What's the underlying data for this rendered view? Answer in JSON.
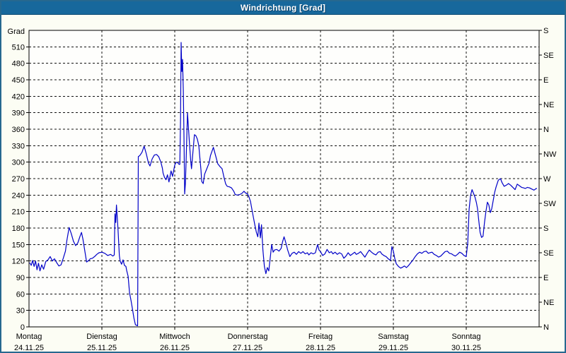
{
  "window": {
    "title": "Windrichtung [Grad]",
    "titlebar_color": "#17689c",
    "border_color": "#26688f",
    "background_color": "#fcfdf4"
  },
  "chart_data": {
    "type": "line",
    "title": "Windrichtung [Grad]",
    "grid": true,
    "line_color": "#0000c8",
    "plot_background": "#fefefc",
    "y_left": {
      "unit_label": "Grad",
      "min": 0,
      "max": 540,
      "tick_step": 30,
      "ticks": [
        0,
        30,
        60,
        90,
        120,
        150,
        180,
        210,
        240,
        270,
        300,
        330,
        360,
        390,
        420,
        450,
        480,
        510
      ]
    },
    "y_right": {
      "description": "compass directions every 45 degrees",
      "ticks": [
        {
          "value": 540,
          "label": "S"
        },
        {
          "value": 495,
          "label": "SE"
        },
        {
          "value": 450,
          "label": "E"
        },
        {
          "value": 405,
          "label": "NE"
        },
        {
          "value": 360,
          "label": "N"
        },
        {
          "value": 315,
          "label": "NW"
        },
        {
          "value": 270,
          "label": "W"
        },
        {
          "value": 225,
          "label": "SW"
        },
        {
          "value": 180,
          "label": "S"
        },
        {
          "value": 135,
          "label": "SE"
        },
        {
          "value": 90,
          "label": "E"
        },
        {
          "value": 45,
          "label": "NE"
        },
        {
          "value": 0,
          "label": "N"
        }
      ]
    },
    "x_axis": {
      "span_days": 7,
      "days": [
        {
          "name": "Montag",
          "date": "24.11.25"
        },
        {
          "name": "Dienstag",
          "date": "25.11.25"
        },
        {
          "name": "Mittwoch",
          "date": "26.11.25"
        },
        {
          "name": "Donnerstag",
          "date": "27.11.25"
        },
        {
          "name": "Freitag",
          "date": "28.11.25"
        },
        {
          "name": "Samstag",
          "date": "29.11.25"
        },
        {
          "name": "Sonntag",
          "date": "30.11.25"
        }
      ]
    },
    "series": [
      {
        "name": "Windrichtung",
        "color": "#0000c8",
        "points": [
          [
            0.01,
            117
          ],
          [
            0.03,
            112
          ],
          [
            0.05,
            121
          ],
          [
            0.07,
            110
          ],
          [
            0.09,
            120
          ],
          [
            0.11,
            104
          ],
          [
            0.13,
            116
          ],
          [
            0.15,
            102
          ],
          [
            0.175,
            113
          ],
          [
            0.2,
            105
          ],
          [
            0.23,
            119
          ],
          [
            0.26,
            122
          ],
          [
            0.29,
            128
          ],
          [
            0.32,
            120
          ],
          [
            0.35,
            124
          ],
          [
            0.38,
            117
          ],
          [
            0.41,
            111
          ],
          [
            0.44,
            113
          ],
          [
            0.47,
            125
          ],
          [
            0.5,
            138
          ],
          [
            0.52,
            158
          ],
          [
            0.55,
            181
          ],
          [
            0.58,
            170
          ],
          [
            0.61,
            156
          ],
          [
            0.64,
            148
          ],
          [
            0.67,
            153
          ],
          [
            0.7,
            165
          ],
          [
            0.72,
            172
          ],
          [
            0.74,
            160
          ],
          [
            0.77,
            135
          ],
          [
            0.79,
            118
          ],
          [
            0.82,
            121
          ],
          [
            0.84,
            124
          ],
          [
            0.87,
            125
          ],
          [
            0.9,
            128
          ],
          [
            0.93,
            132
          ],
          [
            0.96,
            135
          ],
          [
            1.0,
            136
          ],
          [
            1.04,
            134
          ],
          [
            1.08,
            130
          ],
          [
            1.12,
            132
          ],
          [
            1.15,
            129
          ],
          [
            1.17,
            131
          ],
          [
            1.18,
            206
          ],
          [
            1.19,
            190
          ],
          [
            1.2,
            222
          ],
          [
            1.22,
            180
          ],
          [
            1.24,
            130
          ],
          [
            1.25,
            120
          ],
          [
            1.27,
            114
          ],
          [
            1.29,
            122
          ],
          [
            1.31,
            112
          ],
          [
            1.33,
            110
          ],
          [
            1.34,
            103
          ],
          [
            1.36,
            92
          ],
          [
            1.38,
            62
          ],
          [
            1.4,
            48
          ],
          [
            1.42,
            32
          ],
          [
            1.44,
            16
          ],
          [
            1.46,
            4
          ],
          [
            1.49,
            2
          ],
          [
            1.5,
            310
          ],
          [
            1.52,
            312
          ],
          [
            1.55,
            318
          ],
          [
            1.58,
            329
          ],
          [
            1.61,
            315
          ],
          [
            1.64,
            298
          ],
          [
            1.66,
            293
          ],
          [
            1.69,
            306
          ],
          [
            1.72,
            313
          ],
          [
            1.75,
            314
          ],
          [
            1.78,
            310
          ],
          [
            1.81,
            300
          ],
          [
            1.83,
            289
          ],
          [
            1.84,
            280
          ],
          [
            1.86,
            272
          ],
          [
            1.88,
            268
          ],
          [
            1.9,
            277
          ],
          [
            1.92,
            264
          ],
          [
            1.95,
            284
          ],
          [
            1.97,
            274
          ],
          [
            2.0,
            295
          ],
          [
            2.02,
            300
          ],
          [
            2.04,
            299
          ],
          [
            2.06,
            296
          ],
          [
            2.07,
            296
          ],
          [
            2.08,
            380
          ],
          [
            2.087,
            518
          ],
          [
            2.097,
            465
          ],
          [
            2.107,
            487
          ],
          [
            2.117,
            430
          ],
          [
            2.126,
            350
          ],
          [
            2.136,
            242
          ],
          [
            2.146,
            260
          ],
          [
            2.155,
            300
          ],
          [
            2.175,
            390
          ],
          [
            2.184,
            370
          ],
          [
            2.2,
            338
          ],
          [
            2.22,
            300
          ],
          [
            2.23,
            288
          ],
          [
            2.25,
            320
          ],
          [
            2.27,
            350
          ],
          [
            2.29,
            348
          ],
          [
            2.31,
            342
          ],
          [
            2.33,
            330
          ],
          [
            2.34,
            315
          ],
          [
            2.36,
            285
          ],
          [
            2.37,
            265
          ],
          [
            2.39,
            261
          ],
          [
            2.41,
            278
          ],
          [
            2.44,
            288
          ],
          [
            2.47,
            298
          ],
          [
            2.49,
            312
          ],
          [
            2.53,
            327
          ],
          [
            2.56,
            312
          ],
          [
            2.59,
            297
          ],
          [
            2.62,
            292
          ],
          [
            2.65,
            288
          ],
          [
            2.68,
            270
          ],
          [
            2.7,
            260
          ],
          [
            2.72,
            256
          ],
          [
            2.75,
            255
          ],
          [
            2.78,
            253
          ],
          [
            2.81,
            247
          ],
          [
            2.83,
            241
          ],
          [
            2.86,
            240
          ],
          [
            2.89,
            241
          ],
          [
            2.92,
            243
          ],
          [
            2.95,
            247
          ],
          [
            2.97,
            244
          ],
          [
            3.0,
            242
          ],
          [
            3.02,
            236
          ],
          [
            3.04,
            228
          ],
          [
            3.07,
            206
          ],
          [
            3.1,
            185
          ],
          [
            3.12,
            172
          ],
          [
            3.14,
            164
          ],
          [
            3.155,
            189
          ],
          [
            3.175,
            162
          ],
          [
            3.19,
            186
          ],
          [
            3.21,
            140
          ],
          [
            3.23,
            110
          ],
          [
            3.25,
            97
          ],
          [
            3.27,
            108
          ],
          [
            3.29,
            102
          ],
          [
            3.31,
            125
          ],
          [
            3.33,
            150
          ],
          [
            3.35,
            136
          ],
          [
            3.37,
            140
          ],
          [
            3.4,
            141
          ],
          [
            3.43,
            138
          ],
          [
            3.46,
            143
          ],
          [
            3.48,
            155
          ],
          [
            3.5,
            164
          ],
          [
            3.52,
            155
          ],
          [
            3.55,
            140
          ],
          [
            3.58,
            128
          ],
          [
            3.61,
            134
          ],
          [
            3.64,
            136
          ],
          [
            3.67,
            132
          ],
          [
            3.7,
            137
          ],
          [
            3.73,
            134
          ],
          [
            3.76,
            137
          ],
          [
            3.79,
            133
          ],
          [
            3.82,
            135
          ],
          [
            3.84,
            131
          ],
          [
            3.87,
            135
          ],
          [
            3.9,
            133
          ],
          [
            3.93,
            135
          ],
          [
            3.96,
            150
          ],
          [
            3.98,
            140
          ],
          [
            4.0,
            137
          ],
          [
            4.03,
            130
          ],
          [
            4.06,
            133
          ],
          [
            4.09,
            141
          ],
          [
            4.12,
            135
          ],
          [
            4.15,
            137
          ],
          [
            4.17,
            133
          ],
          [
            4.2,
            136
          ],
          [
            4.23,
            132
          ],
          [
            4.26,
            135
          ],
          [
            4.29,
            133
          ],
          [
            4.32,
            125
          ],
          [
            4.35,
            129
          ],
          [
            4.38,
            135
          ],
          [
            4.41,
            130
          ],
          [
            4.44,
            133
          ],
          [
            4.47,
            136
          ],
          [
            4.49,
            132
          ],
          [
            4.52,
            134
          ],
          [
            4.55,
            137
          ],
          [
            4.58,
            132
          ],
          [
            4.61,
            127
          ],
          [
            4.64,
            134
          ],
          [
            4.67,
            140
          ],
          [
            4.7,
            136
          ],
          [
            4.73,
            133
          ],
          [
            4.76,
            131
          ],
          [
            4.79,
            136
          ],
          [
            4.82,
            137
          ],
          [
            4.84,
            133
          ],
          [
            4.87,
            130
          ],
          [
            4.9,
            128
          ],
          [
            4.93,
            124
          ],
          [
            4.96,
            121
          ],
          [
            4.98,
            146
          ],
          [
            5.0,
            138
          ],
          [
            5.02,
            124
          ],
          [
            5.04,
            115
          ],
          [
            5.07,
            110
          ],
          [
            5.1,
            107
          ],
          [
            5.13,
            109
          ],
          [
            5.15,
            111
          ],
          [
            5.18,
            108
          ],
          [
            5.21,
            112
          ],
          [
            5.24,
            117
          ],
          [
            5.27,
            122
          ],
          [
            5.3,
            128
          ],
          [
            5.33,
            133
          ],
          [
            5.36,
            136
          ],
          [
            5.39,
            134
          ],
          [
            5.42,
            137
          ],
          [
            5.45,
            138
          ],
          [
            5.48,
            134
          ],
          [
            5.5,
            135
          ],
          [
            5.53,
            136
          ],
          [
            5.56,
            132
          ],
          [
            5.59,
            130
          ],
          [
            5.62,
            127
          ],
          [
            5.65,
            129
          ],
          [
            5.68,
            133
          ],
          [
            5.71,
            137
          ],
          [
            5.74,
            138
          ],
          [
            5.77,
            134
          ],
          [
            5.8,
            133
          ],
          [
            5.82,
            131
          ],
          [
            5.85,
            129
          ],
          [
            5.88,
            132
          ],
          [
            5.91,
            136
          ],
          [
            5.94,
            134
          ],
          [
            5.97,
            130
          ],
          [
            6.0,
            128
          ],
          [
            6.01,
            140
          ],
          [
            6.02,
            152
          ],
          [
            6.04,
            215
          ],
          [
            6.06,
            240
          ],
          [
            6.08,
            250
          ],
          [
            6.1,
            243
          ],
          [
            6.12,
            236
          ],
          [
            6.14,
            226
          ],
          [
            6.155,
            215
          ],
          [
            6.17,
            196
          ],
          [
            6.19,
            172
          ],
          [
            6.21,
            163
          ],
          [
            6.23,
            165
          ],
          [
            6.25,
            190
          ],
          [
            6.27,
            210
          ],
          [
            6.29,
            227
          ],
          [
            6.31,
            222
          ],
          [
            6.33,
            208
          ],
          [
            6.35,
            215
          ],
          [
            6.37,
            230
          ],
          [
            6.39,
            245
          ],
          [
            6.41,
            255
          ],
          [
            6.44,
            267
          ],
          [
            6.47,
            270
          ],
          [
            6.49,
            263
          ],
          [
            6.52,
            256
          ],
          [
            6.55,
            258
          ],
          [
            6.58,
            261
          ],
          [
            6.61,
            258
          ],
          [
            6.64,
            254
          ],
          [
            6.67,
            250
          ],
          [
            6.7,
            260
          ],
          [
            6.73,
            257
          ],
          [
            6.76,
            254
          ],
          [
            6.79,
            253
          ],
          [
            6.81,
            252
          ],
          [
            6.84,
            254
          ],
          [
            6.87,
            253
          ],
          [
            6.9,
            251
          ],
          [
            6.93,
            249
          ],
          [
            6.96,
            252
          ],
          [
            6.97,
            252
          ]
        ]
      }
    ]
  }
}
